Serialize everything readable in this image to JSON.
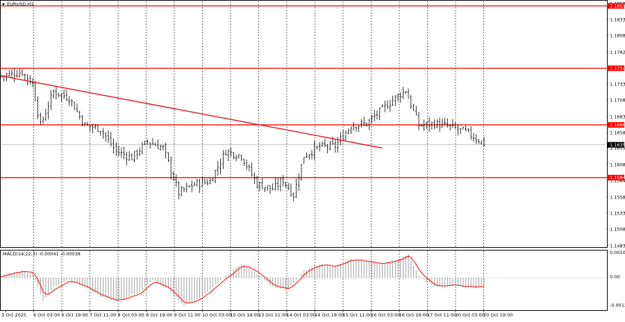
{
  "window": {
    "symbol_title": "EURUSD,H1",
    "indicator_label": "MACD(14,22,3) -0.00041 -0.00038"
  },
  "colors": {
    "background": "#ffffff",
    "bar": "#000000",
    "level_line": "#ff0000",
    "trend_line": "#e8101a",
    "signal_line": "#ff0000",
    "histogram": "#a0a0a0",
    "grid": "#000000",
    "current_price_bg": "#000000",
    "level_label_bg": "#ff0000"
  },
  "chart_data": [
    {
      "type": "candlestick",
      "title": "EURUSD,H1",
      "y_axis_ticks": [
        "1.1858",
        "1.1833",
        "1.1808",
        "1.1782",
        "1.1757",
        "1.1733",
        "1.1708",
        "1.1683",
        "1.1658",
        "1.1635",
        "1.1608",
        "1.1584",
        "1.1558",
        "1.1533",
        "1.1508",
        "1.1483"
      ],
      "x_axis_ticks": [
        "3 Oct 2025",
        "6 Oct 03:00",
        "6 Oct 19:00",
        "7 Oct 11:00",
        "8 Oct 03:00",
        "8 Oct 19:00",
        "9 Oct 11:00",
        "10 Oct 03:00",
        "10 Oct 19:00",
        "13 Oct 11:00",
        "14 Oct 03:00",
        "14 Oct 19:00",
        "15 Oct 11:00",
        "16 Oct 03:00",
        "16 Oct 19:00",
        "17 Oct 11:00",
        "20 Oct 03:00",
        "20 Oct 19:00"
      ],
      "ylim": [
        1.1476,
        1.1858
      ],
      "horizontal_levels": [
        {
          "price": 1.1851,
          "label": "1.1851"
        },
        {
          "price": 1.1754,
          "label": "1.1754"
        },
        {
          "price": 1.1666,
          "label": "1.1666"
        },
        {
          "price": 1.1584,
          "label": "1.1584"
        }
      ],
      "current_price": {
        "price": 1.1635,
        "label": "1.1635"
      },
      "trend_line": {
        "from": {
          "index": 0,
          "price": 1.1742
        },
        "to": {
          "index": 146,
          "price": 1.163
        }
      },
      "close_anchors": [
        [
          0,
          1.1742
        ],
        [
          8,
          1.1748
        ],
        [
          12,
          1.173
        ],
        [
          15,
          1.1665
        ],
        [
          20,
          1.1718
        ],
        [
          26,
          1.1708
        ],
        [
          32,
          1.1665
        ],
        [
          38,
          1.166
        ],
        [
          44,
          1.1625
        ],
        [
          50,
          1.1615
        ],
        [
          56,
          1.164
        ],
        [
          62,
          1.163
        ],
        [
          68,
          1.156
        ],
        [
          74,
          1.1574
        ],
        [
          80,
          1.1578
        ],
        [
          86,
          1.1625
        ],
        [
          92,
          1.1618
        ],
        [
          98,
          1.1574
        ],
        [
          104,
          1.1566
        ],
        [
          108,
          1.158
        ],
        [
          112,
          1.1557
        ],
        [
          116,
          1.1618
        ],
        [
          122,
          1.1632
        ],
        [
          128,
          1.1633
        ],
        [
          134,
          1.1665
        ],
        [
          140,
          1.1668
        ],
        [
          146,
          1.169
        ],
        [
          150,
          1.1705
        ],
        [
          155,
          1.172
        ],
        [
          160,
          1.1665
        ],
        [
          166,
          1.1668
        ],
        [
          172,
          1.1663
        ],
        [
          178,
          1.1655
        ],
        [
          185,
          1.1637
        ]
      ]
    },
    {
      "type": "bar",
      "title": "MACD(14,22,3) -0.00041 -0.00038",
      "y_axis_ticks": [
        "0.00106",
        "0.00",
        "-0.00128"
      ],
      "ylim": [
        -0.00128,
        0.00106
      ],
      "histogram_anchors": [
        [
          0,
          0.0001
        ],
        [
          8,
          0.0003
        ],
        [
          12,
          0.0002
        ],
        [
          16,
          -0.001
        ],
        [
          20,
          -0.0004
        ],
        [
          26,
          -0.0001
        ],
        [
          32,
          -0.0004
        ],
        [
          38,
          -0.0008
        ],
        [
          44,
          -0.001
        ],
        [
          52,
          -0.0007
        ],
        [
          58,
          -0.0001
        ],
        [
          64,
          -0.0005
        ],
        [
          70,
          -0.0012
        ],
        [
          76,
          -0.0009
        ],
        [
          84,
          -0.0001
        ],
        [
          92,
          0.0006
        ],
        [
          98,
          0.0002
        ],
        [
          104,
          -0.0004
        ],
        [
          110,
          -0.0005
        ],
        [
          116,
          0.0003
        ],
        [
          122,
          0.0006
        ],
        [
          128,
          0.0005
        ],
        [
          134,
          0.0008
        ],
        [
          140,
          0.0007
        ],
        [
          146,
          0.0006
        ],
        [
          152,
          0.0008
        ],
        [
          156,
          0.001
        ],
        [
          160,
          0.0001
        ],
        [
          166,
          -0.0004
        ],
        [
          172,
          -0.0003
        ],
        [
          178,
          -0.0004
        ],
        [
          185,
          -0.0004
        ]
      ]
    }
  ]
}
